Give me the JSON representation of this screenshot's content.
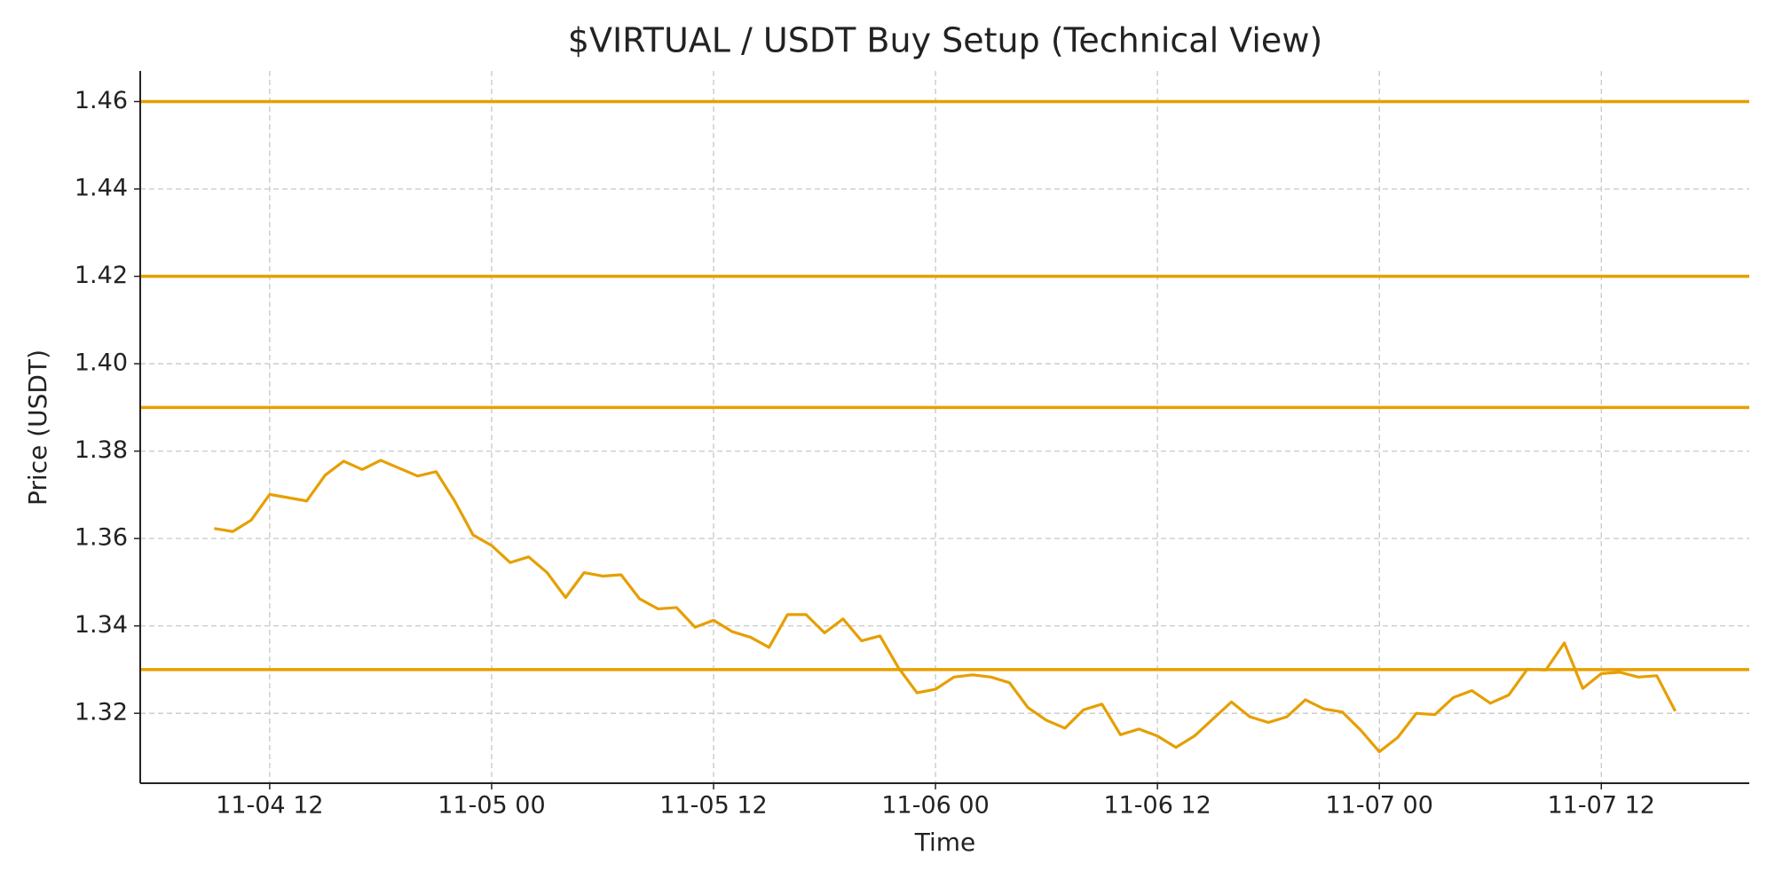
{
  "chart_data": {
    "type": "line",
    "title": "$VIRTUAL / USDT Buy Setup (Technical View)",
    "x_label": "Time",
    "y_label": "Price (USDT)",
    "grid": true,
    "color": "#e69f00",
    "x": [
      "11-04 09",
      "11-04 10",
      "11-04 11",
      "11-04 12",
      "11-04 14",
      "11-04 15",
      "11-04 16",
      "11-04 17",
      "11-04 18",
      "11-04 19",
      "11-04 20",
      "11-04 21",
      "11-04 22",
      "11-04 23",
      "11-05 00",
      "11-05 01",
      "11-05 02",
      "11-05 03",
      "11-05 04",
      "11-05 05",
      "11-05 06",
      "11-05 07",
      "11-05 08",
      "11-05 09",
      "11-05 10",
      "11-05 11",
      "11-05 12",
      "11-05 13",
      "11-05 14",
      "11-05 15",
      "11-05 16",
      "11-05 17",
      "11-05 18",
      "11-05 19",
      "11-05 20",
      "11-05 21",
      "11-05 22",
      "11-05 23",
      "11-06 00",
      "11-06 01",
      "11-06 02",
      "11-06 03",
      "11-06 04",
      "11-06 05",
      "11-06 06",
      "11-06 07",
      "11-06 08",
      "11-06 09",
      "11-06 10",
      "11-06 11",
      "11-06 12",
      "11-06 13",
      "11-06 14",
      "11-06 15",
      "11-06 16",
      "11-06 17",
      "11-06 18",
      "11-06 19",
      "11-06 20",
      "11-06 21",
      "11-06 22",
      "11-06 23",
      "11-07 00",
      "11-07 01",
      "11-07 02",
      "11-07 03",
      "11-07 04",
      "11-07 05",
      "11-07 06",
      "11-07 07",
      "11-07 08",
      "11-07 09",
      "11-07 10",
      "11-07 11",
      "11-07 12",
      "11-07 13",
      "11-07 14",
      "11-07 15",
      "11-07 16"
    ],
    "values": [
      1.3623,
      1.3616,
      1.3642,
      1.3701,
      1.3686,
      1.3745,
      1.3777,
      1.3758,
      1.3779,
      1.3761,
      1.3743,
      1.3753,
      1.3686,
      1.3608,
      1.3584,
      1.3545,
      1.3558,
      1.3522,
      1.3465,
      1.3522,
      1.3514,
      1.3517,
      1.3462,
      1.3439,
      1.3442,
      1.3397,
      1.3413,
      1.3387,
      1.3374,
      1.3351,
      1.3426,
      1.3426,
      1.3384,
      1.3416,
      1.3366,
      1.3377,
      1.3304,
      1.3247,
      1.3255,
      1.3283,
      1.3288,
      1.3283,
      1.327,
      1.3213,
      1.3184,
      1.3166,
      1.3208,
      1.3221,
      1.3151,
      1.3164,
      1.3148,
      1.3122,
      1.3148,
      1.3187,
      1.3226,
      1.3192,
      1.3179,
      1.3192,
      1.3231,
      1.321,
      1.3203,
      1.3161,
      1.3112,
      1.3145,
      1.32,
      1.3197,
      1.3236,
      1.3252,
      1.3223,
      1.3242,
      1.3301,
      1.3299,
      1.3361,
      1.3257,
      1.3291,
      1.3294,
      1.3283,
      1.3286,
      1.3205
    ],
    "hlines": [
      {
        "value": 1.46,
        "color": "#e69f00"
      },
      {
        "value": 1.42,
        "color": "#e69f00"
      },
      {
        "value": 1.39,
        "color": "#e69f00"
      },
      {
        "value": 1.33,
        "color": "#e69f00"
      }
    ],
    "xlim": [
      "11-04 05",
      "11-07 20"
    ],
    "xticks": [
      "11-04 12",
      "11-05 00",
      "11-05 12",
      "11-06 00",
      "11-06 12",
      "11-07 00",
      "11-07 12"
    ],
    "ylim": [
      1.304,
      1.467
    ],
    "yticks": [
      1.32,
      1.34,
      1.36,
      1.38,
      {
        "value": 1.4,
        "label": "1.40"
      },
      1.42,
      1.44,
      1.46
    ]
  }
}
